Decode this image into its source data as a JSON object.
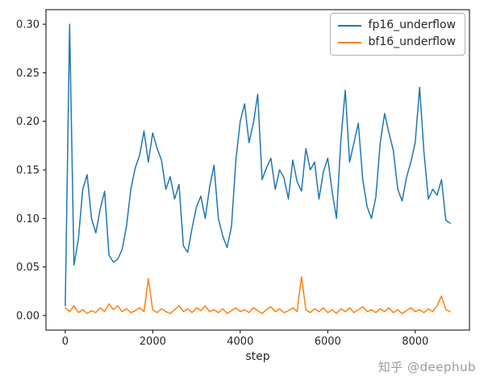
{
  "chart_data": {
    "type": "line",
    "title": "",
    "xlabel": "step",
    "ylabel": "",
    "grid": false,
    "legend_position": "upper right",
    "xlim": [
      -440,
      9240
    ],
    "ylim": [
      -0.015,
      0.315
    ],
    "xticks": [
      0,
      2000,
      4000,
      6000,
      8000
    ],
    "yticks": [
      0.0,
      0.05,
      0.1,
      0.15,
      0.2,
      0.25,
      0.3
    ],
    "x": [
      0,
      100,
      200,
      300,
      400,
      500,
      600,
      700,
      800,
      900,
      1000,
      1100,
      1200,
      1300,
      1400,
      1500,
      1600,
      1700,
      1800,
      1900,
      2000,
      2100,
      2200,
      2300,
      2400,
      2500,
      2600,
      2700,
      2800,
      2900,
      3000,
      3100,
      3200,
      3300,
      3400,
      3500,
      3600,
      3700,
      3800,
      3900,
      4000,
      4100,
      4200,
      4300,
      4400,
      4500,
      4600,
      4700,
      4800,
      4900,
      5000,
      5100,
      5200,
      5300,
      5400,
      5500,
      5600,
      5700,
      5800,
      5900,
      6000,
      6100,
      6200,
      6300,
      6400,
      6500,
      6600,
      6700,
      6800,
      6900,
      7000,
      7100,
      7200,
      7300,
      7400,
      7500,
      7600,
      7700,
      7800,
      7900,
      8000,
      8100,
      8200,
      8300,
      8400,
      8500,
      8600,
      8700,
      8800
    ],
    "series": [
      {
        "name": "fp16_underflow",
        "color": "#1f77b4",
        "values": [
          0.01,
          0.3,
          0.052,
          0.078,
          0.13,
          0.145,
          0.1,
          0.085,
          0.11,
          0.128,
          0.062,
          0.055,
          0.058,
          0.068,
          0.092,
          0.13,
          0.152,
          0.165,
          0.19,
          0.158,
          0.188,
          0.172,
          0.16,
          0.13,
          0.143,
          0.12,
          0.135,
          0.072,
          0.065,
          0.09,
          0.112,
          0.123,
          0.1,
          0.132,
          0.155,
          0.1,
          0.082,
          0.07,
          0.092,
          0.16,
          0.2,
          0.218,
          0.178,
          0.198,
          0.228,
          0.14,
          0.152,
          0.162,
          0.13,
          0.15,
          0.142,
          0.12,
          0.16,
          0.138,
          0.128,
          0.172,
          0.15,
          0.158,
          0.12,
          0.148,
          0.162,
          0.128,
          0.1,
          0.18,
          0.232,
          0.158,
          0.178,
          0.198,
          0.14,
          0.112,
          0.1,
          0.122,
          0.178,
          0.208,
          0.188,
          0.17,
          0.13,
          0.118,
          0.142,
          0.158,
          0.178,
          0.235,
          0.168,
          0.12,
          0.13,
          0.124,
          0.14,
          0.098,
          0.095
        ]
      },
      {
        "name": "bf16_underflow",
        "color": "#ff7f0e",
        "values": [
          0.008,
          0.004,
          0.01,
          0.003,
          0.006,
          0.002,
          0.005,
          0.003,
          0.008,
          0.004,
          0.012,
          0.006,
          0.01,
          0.004,
          0.007,
          0.003,
          0.005,
          0.008,
          0.004,
          0.038,
          0.006,
          0.003,
          0.007,
          0.004,
          0.002,
          0.006,
          0.01,
          0.004,
          0.007,
          0.003,
          0.008,
          0.005,
          0.01,
          0.004,
          0.006,
          0.003,
          0.007,
          0.002,
          0.005,
          0.008,
          0.004,
          0.006,
          0.003,
          0.008,
          0.005,
          0.002,
          0.006,
          0.009,
          0.004,
          0.007,
          0.003,
          0.005,
          0.008,
          0.004,
          0.04,
          0.006,
          0.003,
          0.007,
          0.004,
          0.008,
          0.003,
          0.006,
          0.002,
          0.007,
          0.004,
          0.008,
          0.003,
          0.006,
          0.009,
          0.004,
          0.006,
          0.003,
          0.007,
          0.004,
          0.008,
          0.003,
          0.006,
          0.002,
          0.005,
          0.008,
          0.004,
          0.006,
          0.003,
          0.007,
          0.004,
          0.01,
          0.02,
          0.006,
          0.004
        ]
      }
    ]
  },
  "watermark": "知乎 @deephub"
}
